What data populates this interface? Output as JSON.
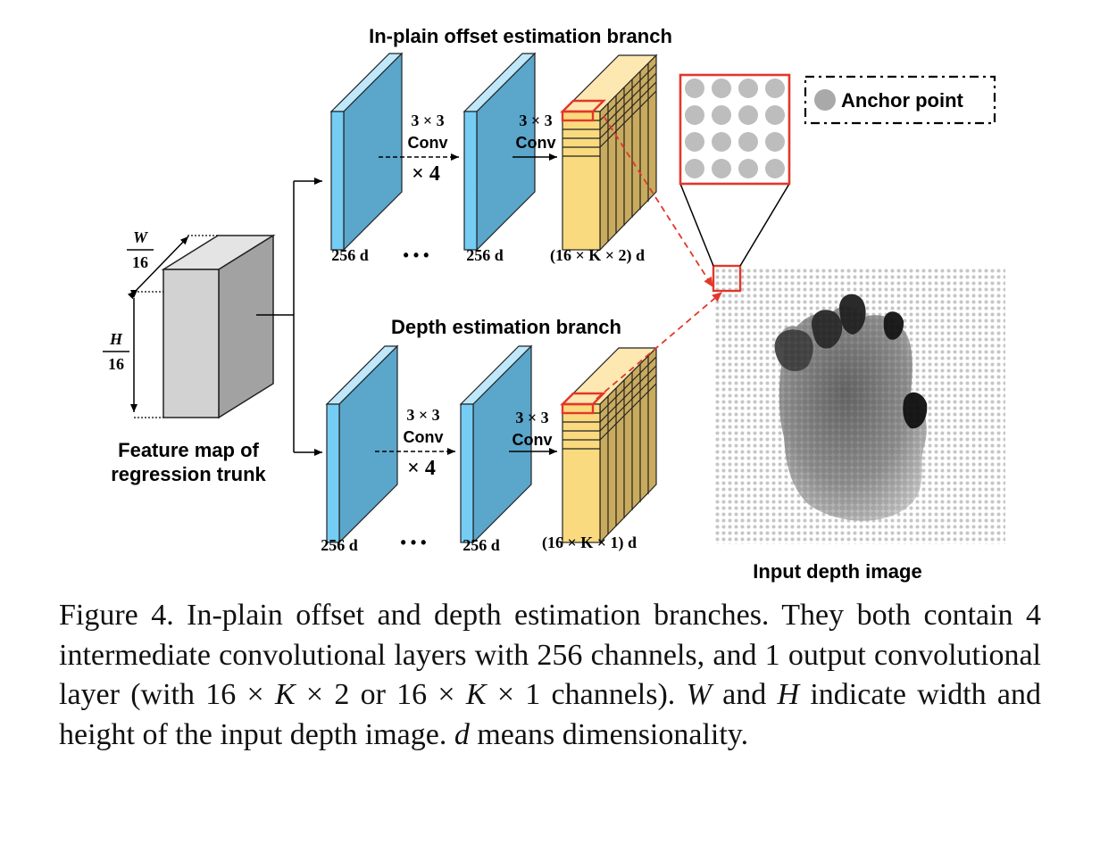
{
  "branches": {
    "top_title": "In-plain offset estimation branch",
    "bottom_title": "Depth estimation branch"
  },
  "trunk": {
    "label_line1": "Feature map of",
    "label_line2": "regression trunk",
    "w_num": "W",
    "w_den": "16",
    "h_num": "H",
    "h_den": "16"
  },
  "conv": {
    "size": "3 × 3",
    "word": "Conv",
    "repeat": "× 4"
  },
  "dims": {
    "d256": "256 d",
    "ellipsis": "• • •",
    "top_out": "(16 × K × 2) d",
    "bottom_out": "(16 × K × 1) d"
  },
  "legend": {
    "anchor_point": "Anchor point"
  },
  "input_label": "Input depth image",
  "caption": {
    "p1": "Figure 4. In-plain offset and depth estimation branches. They both contain 4 intermediate convolutional layers with 256 channels, and 1 output convolutional layer (with 16 × ",
    "k1": "K",
    "p2": " × 2 or 16 × ",
    "k2": "K",
    "p3": " × 1 channels). ",
    "w": "W",
    "p4": " and ",
    "h": "H",
    "p5": " indicate width and height of the input depth image. ",
    "d": "d",
    "p6": " means dimensionality."
  },
  "colors": {
    "blue_front": "#75CDF4",
    "blue_side": "#5BA6CB",
    "yellow": "#FADA7E",
    "yellow_side": "#C9AB5E",
    "gray_front": "#D2D2D2",
    "gray_side": "#A2A2A2",
    "red": "#E2372B"
  }
}
